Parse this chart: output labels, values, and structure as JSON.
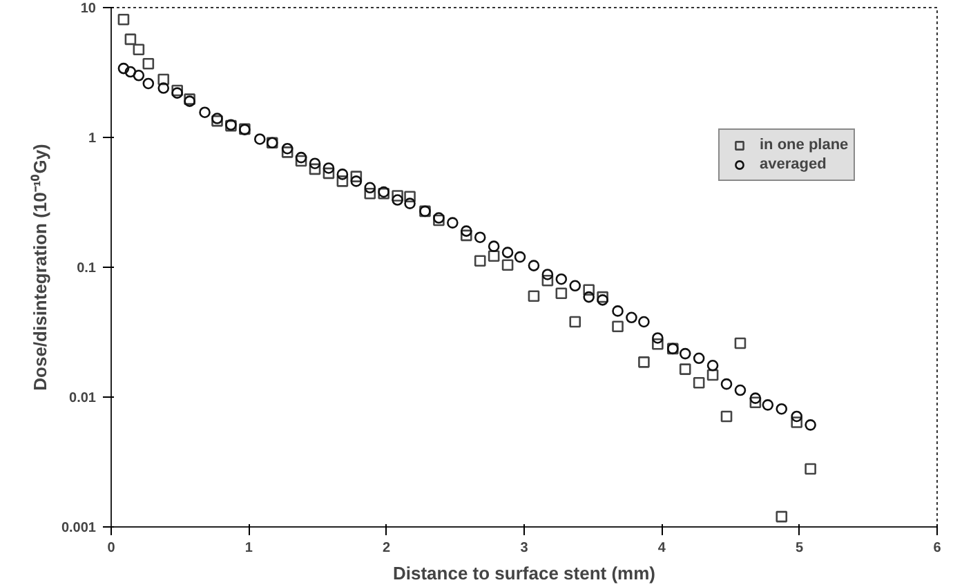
{
  "chart_data": {
    "type": "scatter",
    "xlabel": "Distance to surface stent (mm)",
    "ylabel": "Dose/disintegration (10⁻¹⁰Gy)",
    "log": "y",
    "xlim": [
      0,
      6
    ],
    "xticks": [
      0,
      1,
      2,
      3,
      4,
      5,
      6
    ],
    "ylim": [
      0.001,
      10
    ],
    "yticks": [
      0.001,
      0.01,
      0.1,
      1,
      10
    ],
    "legend": "right",
    "grid": false,
    "series": [
      {
        "name": "in one plane",
        "color": "#444444",
        "marker": "square",
        "x": [
          0.09,
          0.14,
          0.2,
          0.27,
          0.38,
          0.48,
          0.57,
          0.68,
          0.77,
          0.87,
          0.97,
          1.08,
          1.17,
          1.28,
          1.38,
          1.48,
          1.58,
          1.68,
          1.78,
          1.88,
          1.98,
          2.08,
          2.17,
          2.28,
          2.38,
          2.48,
          2.58,
          2.68,
          2.78,
          2.88,
          3.07,
          3.17,
          3.27,
          3.37,
          3.47,
          3.57,
          3.68,
          3.87,
          3.97,
          4.08,
          4.17,
          4.27,
          4.37,
          4.47,
          4.57,
          4.68,
          4.87,
          4.98,
          5.08
        ],
        "values": [
          8.1,
          5.7,
          4.75,
          3.7,
          2.8,
          2.3,
          1.97,
          null,
          1.34,
          1.23,
          1.16,
          null,
          0.91,
          0.77,
          0.66,
          0.57,
          0.53,
          0.46,
          0.5,
          0.37,
          0.37,
          0.355,
          0.35,
          0.27,
          0.23,
          null,
          0.176,
          0.112,
          0.122,
          0.104,
          0.06,
          0.079,
          0.063,
          0.038,
          0.067,
          0.059,
          0.035,
          0.0186,
          0.0256,
          0.0236,
          0.0164,
          0.0129,
          0.0148,
          0.0071,
          0.026,
          0.0091,
          0.0012,
          0.0064,
          0.0028
        ]
      },
      {
        "name": "averaged",
        "color": "#111111",
        "marker": "circle",
        "x": [
          0.09,
          0.14,
          0.2,
          0.27,
          0.38,
          0.48,
          0.57,
          0.68,
          0.77,
          0.87,
          0.97,
          1.08,
          1.17,
          1.28,
          1.38,
          1.48,
          1.58,
          1.68,
          1.78,
          1.88,
          1.98,
          2.08,
          2.17,
          2.28,
          2.38,
          2.48,
          2.58,
          2.68,
          2.78,
          2.88,
          2.97,
          3.07,
          3.17,
          3.27,
          3.37,
          3.47,
          3.57,
          3.68,
          3.78,
          3.87,
          3.97,
          4.08,
          4.17,
          4.27,
          4.37,
          4.47,
          4.57,
          4.68,
          4.77,
          4.87,
          4.98,
          5.08
        ],
        "values": [
          3.4,
          3.2,
          3.0,
          2.6,
          2.4,
          2.2,
          1.9,
          1.56,
          1.4,
          1.25,
          1.15,
          0.97,
          0.91,
          0.82,
          0.7,
          0.63,
          0.58,
          0.52,
          0.46,
          0.41,
          0.38,
          0.33,
          0.31,
          0.27,
          0.24,
          0.22,
          0.19,
          0.17,
          0.145,
          0.13,
          0.12,
          0.103,
          0.088,
          0.081,
          0.072,
          0.059,
          0.056,
          0.046,
          0.041,
          0.038,
          0.0285,
          0.0236,
          0.0216,
          0.0199,
          0.0175,
          0.0126,
          0.0113,
          0.0098,
          0.0087,
          0.0081,
          0.0071,
          0.0061
        ]
      }
    ]
  }
}
